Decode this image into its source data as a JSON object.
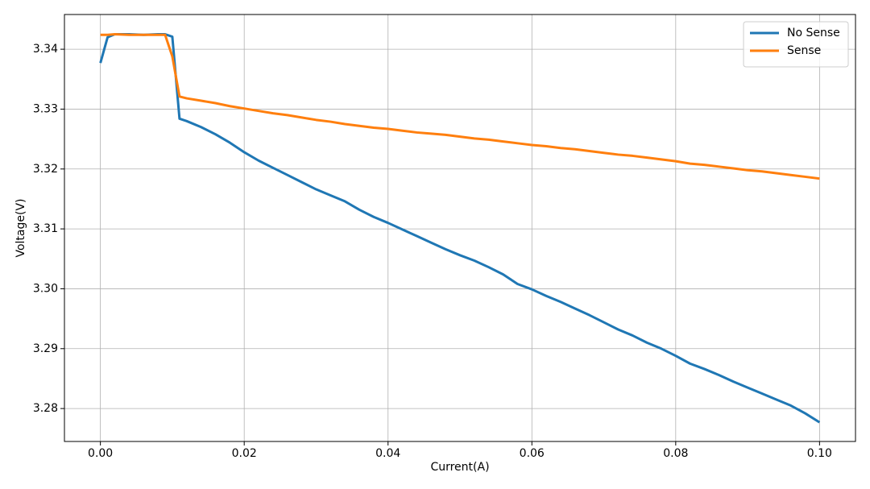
{
  "chart_data": {
    "type": "line",
    "x_label": "Current(A)",
    "y_label": "Voltage(V)",
    "x": [
      0,
      0.001,
      0.002,
      0.004,
      0.006,
      0.008,
      0.009,
      0.01,
      0.011,
      0.012,
      0.014,
      0.016,
      0.018,
      0.02,
      0.022,
      0.024,
      0.026,
      0.028,
      0.03,
      0.032,
      0.034,
      0.036,
      0.038,
      0.04,
      0.042,
      0.044,
      0.046,
      0.048,
      0.05,
      0.052,
      0.054,
      0.056,
      0.058,
      0.06,
      0.062,
      0.064,
      0.066,
      0.068,
      0.07,
      0.072,
      0.074,
      0.076,
      0.078,
      0.08,
      0.082,
      0.084,
      0.086,
      0.088,
      0.09,
      0.092,
      0.094,
      0.096,
      0.098,
      0.1
    ],
    "series": [
      {
        "name": "No Sense",
        "color": "#1f77b4",
        "values": [
          3.3377,
          3.342,
          3.3425,
          3.3425,
          3.3424,
          3.3425,
          3.3425,
          3.3421,
          3.3284,
          3.328,
          3.327,
          3.3258,
          3.3244,
          3.3228,
          3.3214,
          3.3202,
          3.319,
          3.3178,
          3.3166,
          3.3156,
          3.3146,
          3.3132,
          3.312,
          3.311,
          3.3099,
          3.3088,
          3.3077,
          3.3066,
          3.3056,
          3.3047,
          3.3036,
          3.3024,
          3.3008,
          3.2999,
          3.2988,
          3.2978,
          3.2967,
          3.2956,
          3.2944,
          3.2932,
          3.2922,
          3.291,
          3.29,
          3.2888,
          3.2875,
          3.2866,
          3.2856,
          3.2845,
          3.2835,
          3.2825,
          3.2815,
          3.2805,
          3.2792,
          3.2777
        ]
      },
      {
        "name": "Sense",
        "color": "#ff7f0e",
        "values": [
          3.3424,
          3.3424,
          3.3425,
          3.3424,
          3.3424,
          3.3424,
          3.3424,
          3.3388,
          3.3321,
          3.3318,
          3.3314,
          3.331,
          3.3305,
          3.3301,
          3.3297,
          3.3293,
          3.329,
          3.3286,
          3.3282,
          3.3279,
          3.3275,
          3.3272,
          3.3269,
          3.3267,
          3.3264,
          3.3261,
          3.3259,
          3.3257,
          3.3254,
          3.3251,
          3.3249,
          3.3246,
          3.3243,
          3.324,
          3.3238,
          3.3235,
          3.3233,
          3.323,
          3.3227,
          3.3224,
          3.3222,
          3.3219,
          3.3216,
          3.3213,
          3.3209,
          3.3207,
          3.3204,
          3.3201,
          3.3198,
          3.3196,
          3.3193,
          3.319,
          3.3187,
          3.3184
        ]
      }
    ],
    "xlim": [
      -0.005,
      0.105
    ],
    "ylim": [
      3.2745,
      3.3458
    ],
    "xticks": [
      {
        "value": 0,
        "label": "0.00"
      },
      0.02,
      0.04,
      0.06,
      0.08,
      {
        "value": 0.1,
        "label": "0.10"
      }
    ],
    "yticks": [
      3.28,
      3.29,
      {
        "value": 3.3,
        "label": "3.30"
      },
      3.31,
      3.32,
      3.33,
      3.34
    ],
    "grid": true,
    "legend": "upper right"
  }
}
